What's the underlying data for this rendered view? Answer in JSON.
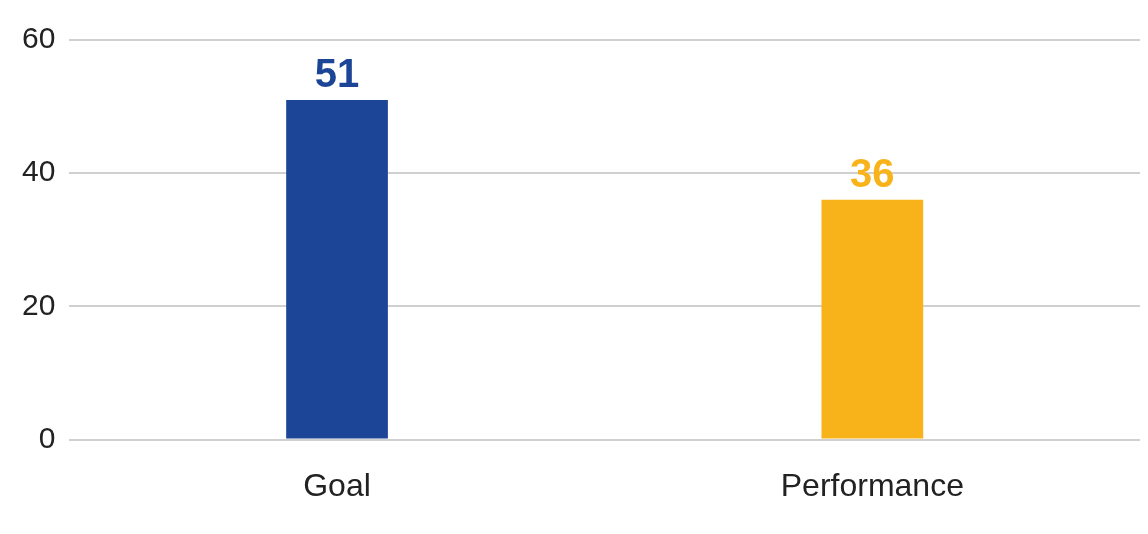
{
  "chart_data": {
    "type": "bar",
    "categories": [
      "Goal",
      "Performance"
    ],
    "values": [
      51,
      36
    ],
    "colors": [
      "#1c4597",
      "#f8b31a"
    ],
    "ylim": [
      0,
      60
    ],
    "yticks": [
      0,
      20,
      40,
      60
    ],
    "grid": "y",
    "data_labels": true,
    "legend": false
  }
}
